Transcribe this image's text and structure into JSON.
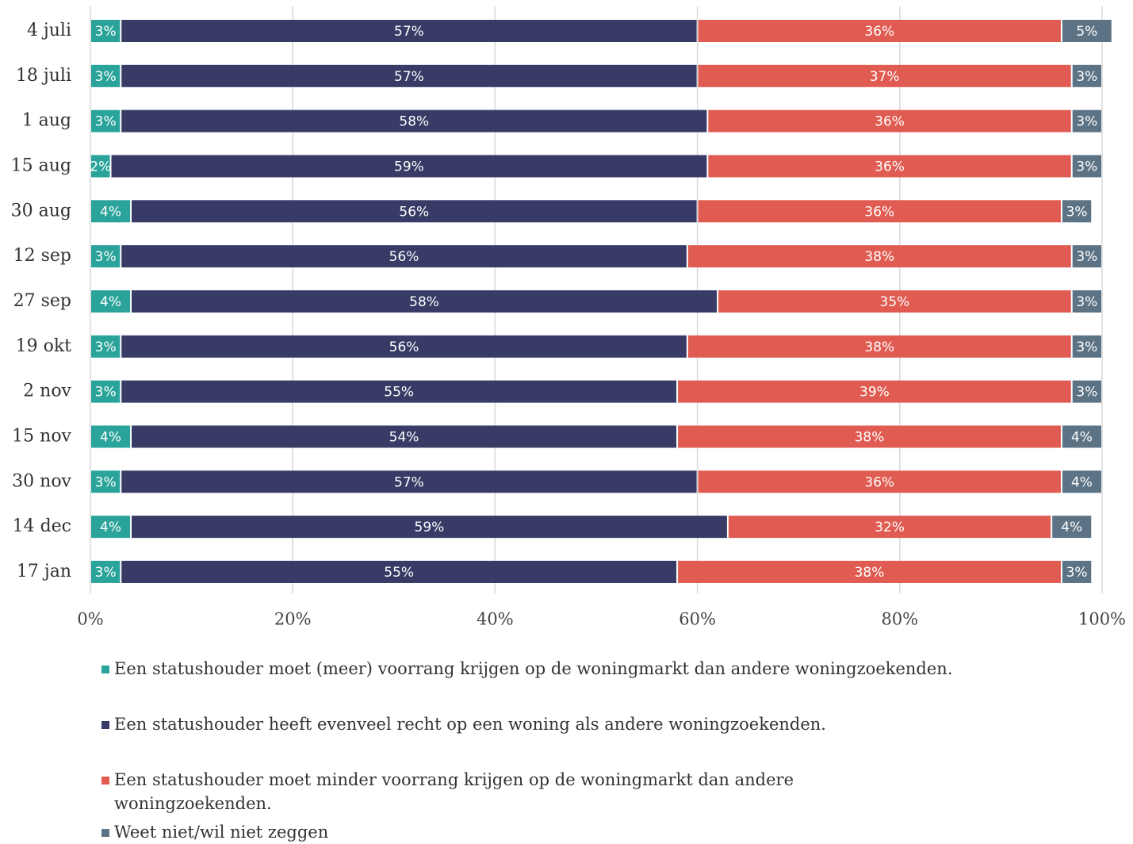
{
  "chart_data": {
    "type": "stacked-bar-horizontal",
    "categories": [
      "4 juli",
      "18 juli",
      "1 aug",
      "15 aug",
      "30 aug",
      "12 sep",
      "27 sep",
      "19 okt",
      "2 nov",
      "15 nov",
      "30 nov",
      "14 dec",
      "17 jan"
    ],
    "series": [
      {
        "name": "Een statushouder moet (meer) voorrang krijgen op de woningmarkt dan andere woningzoekenden.",
        "color": "#2aa39a",
        "values": [
          3,
          3,
          3,
          2,
          4,
          3,
          4,
          3,
          3,
          4,
          3,
          4,
          3
        ],
        "value_labels": [
          "3%",
          "3%",
          "3%",
          "2%",
          "4%",
          "3%",
          "4%",
          "3%",
          "3%",
          "4%",
          "3%",
          "4%",
          "3%"
        ]
      },
      {
        "name": "Een statushouder heeft evenveel recht op een woning als andere woningzoekenden.",
        "color": "#373b66",
        "values": [
          57,
          57,
          58,
          59,
          56,
          56,
          58,
          56,
          55,
          54,
          57,
          59,
          55
        ],
        "value_labels": [
          "57%",
          "57%",
          "58%",
          "59%",
          "56%",
          "56%",
          "58%",
          "56%",
          "55%",
          "54%",
          "57%",
          "59%",
          "55%"
        ]
      },
      {
        "name": "Een statushouder moet minder voorrang krijgen op de woningmarkt dan andere woningzoekenden.",
        "color": "#e05c52",
        "values": [
          36,
          37,
          36,
          36,
          36,
          38,
          35,
          38,
          39,
          38,
          36,
          32,
          38
        ],
        "value_labels": [
          "36%",
          "37%",
          "36%",
          "36%",
          "36%",
          "38%",
          "35%",
          "38%",
          "39%",
          "38%",
          "36%",
          "32%",
          "38%"
        ]
      },
      {
        "name": "Weet niet/wil niet zeggen",
        "color": "#5c7386",
        "values": [
          5,
          3,
          3,
          3,
          3,
          3,
          3,
          3,
          3,
          4,
          4,
          4,
          3
        ],
        "value_labels": [
          "5%",
          "3%",
          "3%",
          "3%",
          "3%",
          "3%",
          "3%",
          "3%",
          "3%",
          "4%",
          "4%",
          "4%",
          "3%"
        ]
      }
    ],
    "xlim": [
      0,
      100
    ],
    "xticks": [
      {
        "value": 0,
        "label": "0%"
      },
      {
        "value": 20,
        "label": "20%"
      },
      {
        "value": 40,
        "label": "40%"
      },
      {
        "value": 60,
        "label": "60%"
      },
      {
        "value": 80,
        "label": "80%"
      },
      {
        "value": 100,
        "label": "100%"
      }
    ],
    "grid": true
  }
}
